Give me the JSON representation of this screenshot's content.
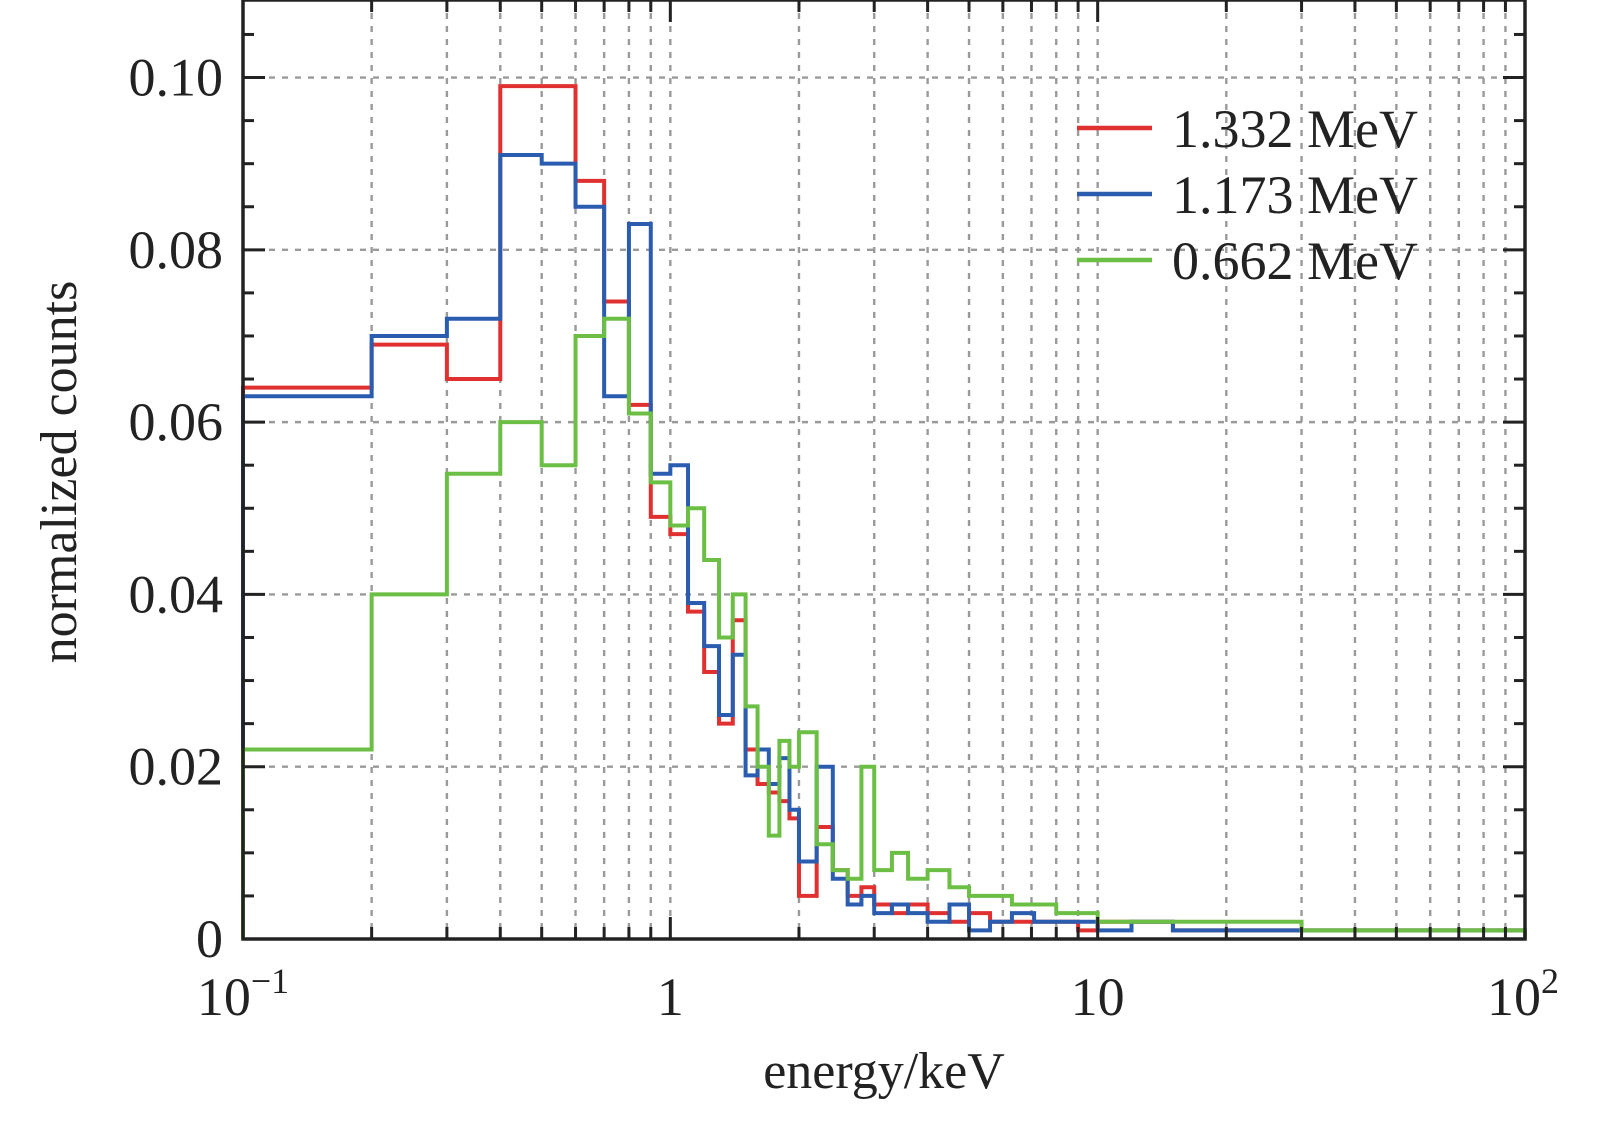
{
  "chart_data": {
    "type": "line",
    "style": "step histogram",
    "xscale": "log",
    "xlabel": "energy/keV",
    "ylabel": "normalized counts",
    "xlim": [
      0.1,
      100
    ],
    "ylim": [
      0,
      0.109
    ],
    "grid": true,
    "legend_position": "top-right",
    "x_ticks": [
      {
        "value": 0.1,
        "base": "10",
        "exp": "−1"
      },
      {
        "value": 1,
        "label": "1"
      },
      {
        "value": 10,
        "label": "10"
      },
      {
        "value": 100,
        "base": "10",
        "exp": "2"
      }
    ],
    "y_ticks": [
      {
        "value": 0,
        "label": "0"
      },
      {
        "value": 0.02,
        "label": "0.02"
      },
      {
        "value": 0.04,
        "label": "0.04"
      },
      {
        "value": 0.06,
        "label": "0.06"
      },
      {
        "value": 0.08,
        "label": "0.08"
      },
      {
        "value": 0.1,
        "label": "0.10"
      }
    ],
    "series": [
      {
        "name": "1.332 MeV",
        "color": "#e03030",
        "edges": [
          0.1,
          0.2,
          0.3,
          0.4,
          0.5,
          0.6,
          0.7,
          0.8,
          0.9,
          1.0,
          1.1,
          1.2,
          1.3,
          1.4,
          1.5,
          1.6,
          1.7,
          1.8,
          1.9,
          2.0,
          2.2,
          2.4,
          2.6,
          2.8,
          3.0,
          3.3,
          3.6,
          4.0,
          4.5,
          5.0,
          5.6,
          6.3,
          7.1,
          8.0,
          9.0,
          10,
          12,
          15,
          20,
          30,
          50,
          100
        ],
        "values": [
          0.064,
          0.069,
          0.065,
          0.099,
          0.099,
          0.088,
          0.074,
          0.062,
          0.049,
          0.047,
          0.038,
          0.031,
          0.025,
          0.037,
          0.022,
          0.018,
          0.017,
          0.016,
          0.014,
          0.005,
          0.013,
          0.008,
          0.005,
          0.006,
          0.004,
          0.003,
          0.004,
          0.003,
          0.002,
          0.003,
          0.002,
          0.002,
          0.002,
          0.002,
          0.001,
          0.002,
          0.002,
          0.001,
          0.001,
          0.001,
          0.001
        ]
      },
      {
        "name": "1.173 MeV",
        "color": "#2a5db0",
        "edges": [
          0.1,
          0.2,
          0.3,
          0.4,
          0.5,
          0.6,
          0.7,
          0.8,
          0.9,
          1.0,
          1.1,
          1.2,
          1.3,
          1.4,
          1.5,
          1.6,
          1.7,
          1.8,
          1.9,
          2.0,
          2.2,
          2.4,
          2.6,
          2.8,
          3.0,
          3.3,
          3.6,
          4.0,
          4.5,
          5.0,
          5.6,
          6.3,
          7.1,
          8.0,
          9.0,
          10,
          12,
          15,
          20,
          30,
          50,
          100
        ],
        "values": [
          0.063,
          0.07,
          0.072,
          0.091,
          0.09,
          0.085,
          0.063,
          0.083,
          0.054,
          0.055,
          0.039,
          0.034,
          0.026,
          0.033,
          0.019,
          0.022,
          0.018,
          0.021,
          0.015,
          0.009,
          0.02,
          0.007,
          0.004,
          0.005,
          0.003,
          0.004,
          0.003,
          0.002,
          0.004,
          0.001,
          0.002,
          0.003,
          0.002,
          0.002,
          0.002,
          0.001,
          0.002,
          0.001,
          0.001,
          0.001,
          0.001
        ]
      },
      {
        "name": "0.662 MeV",
        "color": "#6cbf45",
        "edges": [
          0.1,
          0.2,
          0.3,
          0.4,
          0.5,
          0.6,
          0.7,
          0.8,
          0.9,
          1.0,
          1.1,
          1.2,
          1.3,
          1.4,
          1.5,
          1.6,
          1.7,
          1.8,
          1.9,
          2.0,
          2.2,
          2.4,
          2.6,
          2.8,
          3.0,
          3.3,
          3.6,
          4.0,
          4.5,
          5.0,
          5.6,
          6.3,
          7.1,
          8.0,
          9.0,
          10,
          12,
          15,
          20,
          30,
          50,
          100
        ],
        "values": [
          0.022,
          0.04,
          0.054,
          0.06,
          0.055,
          0.07,
          0.072,
          0.061,
          0.053,
          0.048,
          0.05,
          0.044,
          0.035,
          0.04,
          0.027,
          0.02,
          0.012,
          0.023,
          0.02,
          0.024,
          0.011,
          0.008,
          0.007,
          0.02,
          0.008,
          0.01,
          0.007,
          0.008,
          0.006,
          0.005,
          0.005,
          0.004,
          0.004,
          0.003,
          0.003,
          0.002,
          0.002,
          0.002,
          0.002,
          0.001,
          0.001
        ]
      }
    ]
  }
}
